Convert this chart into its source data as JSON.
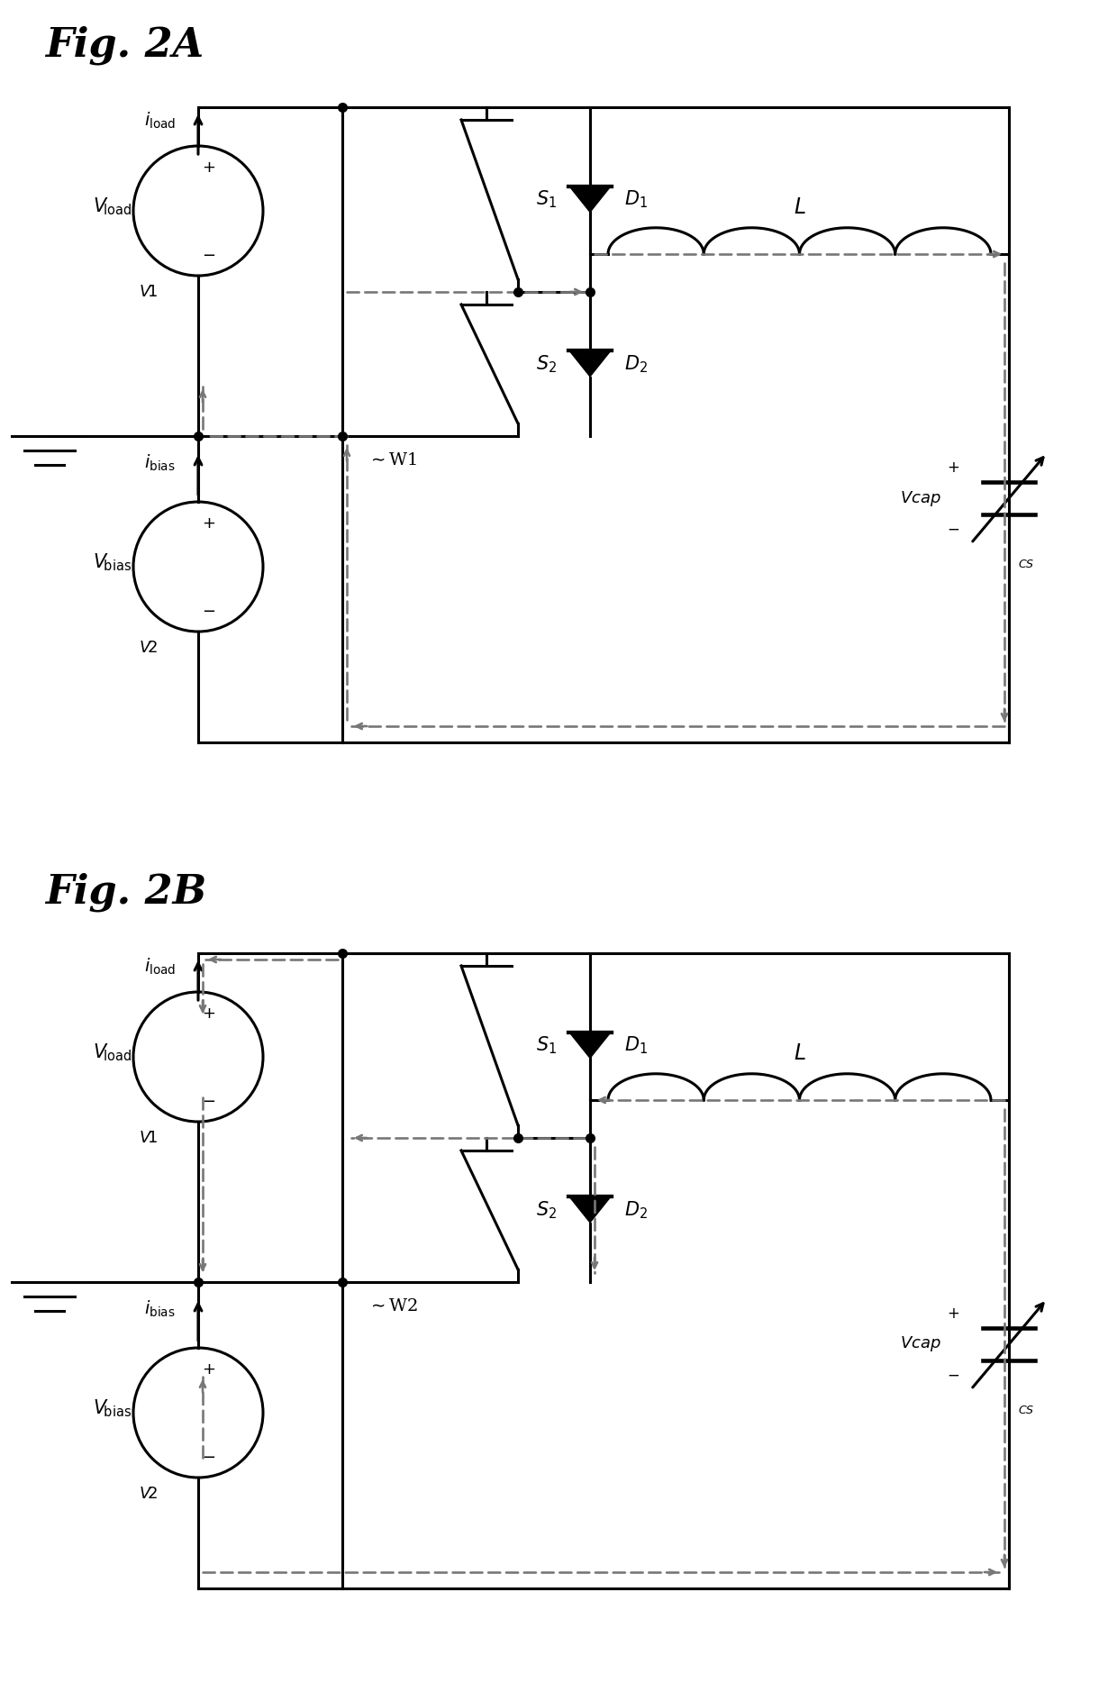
{
  "fig_title_A": "Fig. 2A",
  "fig_title_B": "Fig. 2B",
  "background": "#ffffff",
  "lw": 2.2,
  "lw_thick": 2.8,
  "dash_color": "#777777",
  "dash_lw": 1.9
}
